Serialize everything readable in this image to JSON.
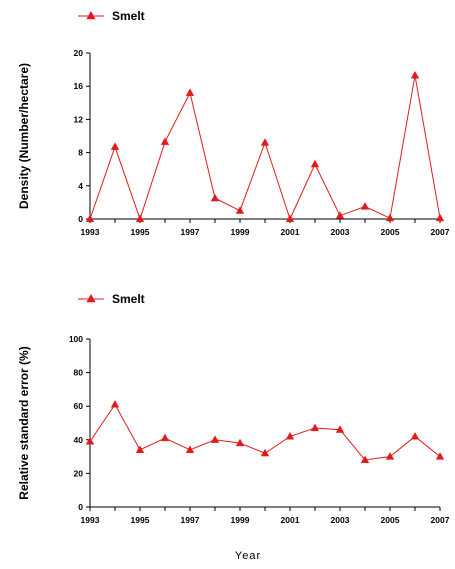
{
  "colors": {
    "series": "#e31a1c",
    "axis": "#000000"
  },
  "x_label": "Year",
  "chart_data": [
    {
      "type": "line",
      "ylabel": "Density (Number/hectare)",
      "ylim": [
        0,
        20
      ],
      "yticks": [
        0,
        4,
        8,
        12,
        16,
        20
      ],
      "xlim": [
        1993,
        2007
      ],
      "xticks": [
        1993,
        1995,
        1997,
        1999,
        2001,
        2003,
        2005,
        2007
      ],
      "legend_position": "top-left",
      "series": [
        {
          "name": "Smelt",
          "marker": "triangle",
          "x": [
            1993,
            1994,
            1995,
            1996,
            1997,
            1998,
            1999,
            2000,
            2001,
            2002,
            2003,
            2004,
            2005,
            2006,
            2007
          ],
          "y": [
            0,
            8.7,
            0,
            9.3,
            15.2,
            2.5,
            1.0,
            9.2,
            0,
            6.6,
            0.4,
            1.5,
            0.1,
            17.3,
            0.1
          ]
        }
      ]
    },
    {
      "type": "line",
      "ylabel": "Relative standard error (%)",
      "ylim": [
        0,
        100
      ],
      "yticks": [
        0,
        20,
        40,
        60,
        80,
        100
      ],
      "xlim": [
        1993,
        2007
      ],
      "xticks": [
        1993,
        1995,
        1997,
        1999,
        2001,
        2003,
        2005,
        2007
      ],
      "legend_position": "top-left",
      "series": [
        {
          "name": "Smelt",
          "marker": "triangle",
          "x": [
            1993,
            1994,
            1995,
            1996,
            1997,
            1998,
            1999,
            2000,
            2001,
            2002,
            2003,
            2004,
            2005,
            2006,
            2007
          ],
          "y": [
            39,
            61,
            34,
            41,
            34,
            40,
            38,
            32,
            42,
            47,
            46,
            28,
            30,
            42,
            30
          ]
        }
      ]
    }
  ]
}
